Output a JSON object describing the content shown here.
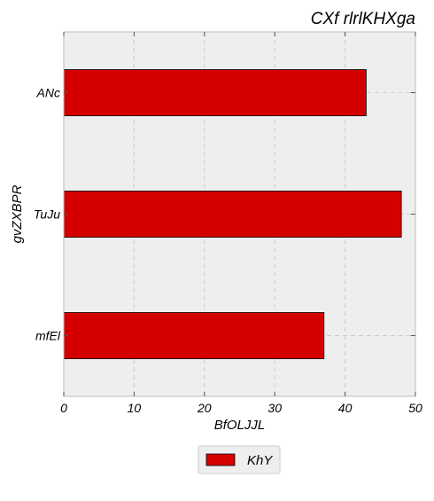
{
  "chart_data": {
    "type": "bar",
    "orientation": "horizontal",
    "title": "CXf rlrlKHXga",
    "xlabel": "BfOLJJL",
    "ylabel": "gvZXBPR",
    "categories": [
      "ANc",
      "TuJu",
      "mfEl"
    ],
    "series": [
      {
        "name": "KhY",
        "values": [
          43,
          48,
          37
        ],
        "color": "#d40000"
      }
    ],
    "xlim": [
      0,
      50
    ],
    "xticks": [
      0,
      10,
      20,
      30,
      40,
      50
    ],
    "xtick_labels": [
      "0",
      "10",
      "20",
      "30",
      "40",
      "50"
    ],
    "grid": true,
    "legend_position": "bottom-center",
    "background_color": "#eeeeee",
    "grid_color": "#cccccc"
  }
}
